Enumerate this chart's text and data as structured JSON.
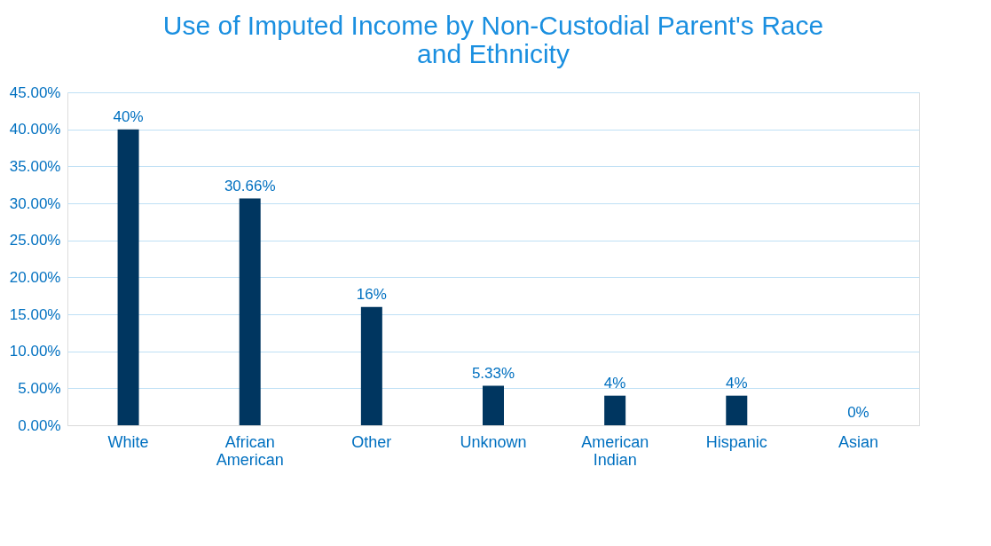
{
  "chart_data": {
    "type": "bar",
    "title": "Use of Imputed Income by Non-Custodial Parent's Race and Ethnicity",
    "categories": [
      "White",
      "African American",
      "Other",
      "Unknown",
      "American Indian",
      "Hispanic",
      "Asian"
    ],
    "values": [
      40,
      30.66,
      16,
      5.33,
      4,
      4,
      0
    ],
    "value_labels": [
      "40%",
      "30.66%",
      "16%",
      "5.33%",
      "4%",
      "4%",
      "0%"
    ],
    "color": "#003660",
    "ylim": [
      0,
      45
    ],
    "yticks": [
      {
        "value": 0,
        "label": "0.00%"
      },
      {
        "value": 5,
        "label": "5.00%"
      },
      {
        "value": 10,
        "label": "10.00%"
      },
      {
        "value": 15,
        "label": "15.00%"
      },
      {
        "value": 20,
        "label": "20.00%"
      },
      {
        "value": 25,
        "label": "25.00%"
      },
      {
        "value": 30,
        "label": "30.00%"
      },
      {
        "value": 35,
        "label": "35.00%"
      },
      {
        "value": 40,
        "label": "40.00%"
      },
      {
        "value": 45,
        "label": "45.00%"
      }
    ],
    "grid": "y"
  }
}
